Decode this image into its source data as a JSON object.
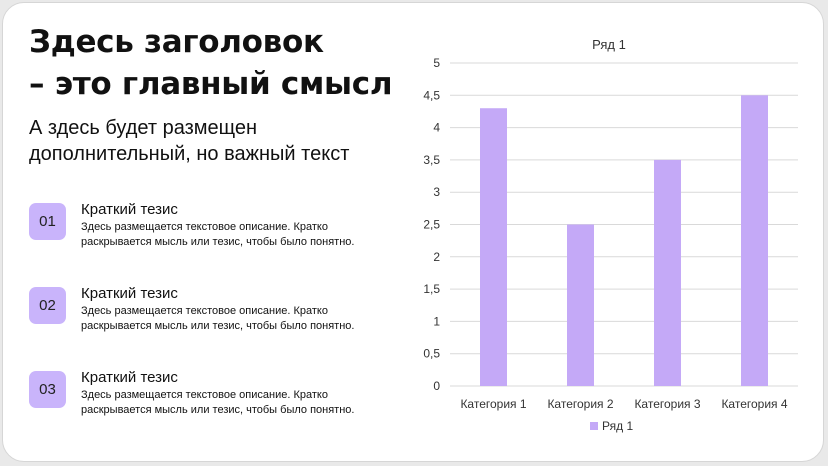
{
  "heading": {
    "line1": "Здесь заголовок",
    "line2": "– это главный смысл"
  },
  "subheading": {
    "line1": "А здесь будет размещен",
    "line2": "дополнительный, но важный текст"
  },
  "theses": [
    {
      "number": "01",
      "title": "Краткий тезис",
      "text": "Здесь размещается текстовое описание. Кратко раскрывается мысль или тезис, чтобы было понятно."
    },
    {
      "number": "02",
      "title": "Краткий тезис",
      "text": "Здесь размещается текстовое описание. Кратко раскрывается мысль или тезис, чтобы было понятно."
    },
    {
      "number": "03",
      "title": "Краткий тезис",
      "text": "Здесь размещается текстовое описание. Кратко раскрывается мысль или тезис, чтобы было понятно."
    }
  ],
  "colors": {
    "accent": "#c9b4fb",
    "bar": "#c4a9f7",
    "grid": "#d9d9d9"
  },
  "chart_data": {
    "type": "bar",
    "title": "Ряд 1",
    "categories": [
      "Категория 1",
      "Категория 2",
      "Категория 3",
      "Категория 4"
    ],
    "series": [
      {
        "name": "Ряд 1",
        "values": [
          4.3,
          2.5,
          3.5,
          4.5
        ]
      }
    ],
    "ylim": [
      0,
      5
    ],
    "yticks": [
      "0",
      "0,5",
      "1",
      "1,5",
      "2",
      "2,5",
      "3",
      "3,5",
      "4",
      "4,5",
      "5"
    ],
    "grid": true,
    "legend": "bottom"
  }
}
